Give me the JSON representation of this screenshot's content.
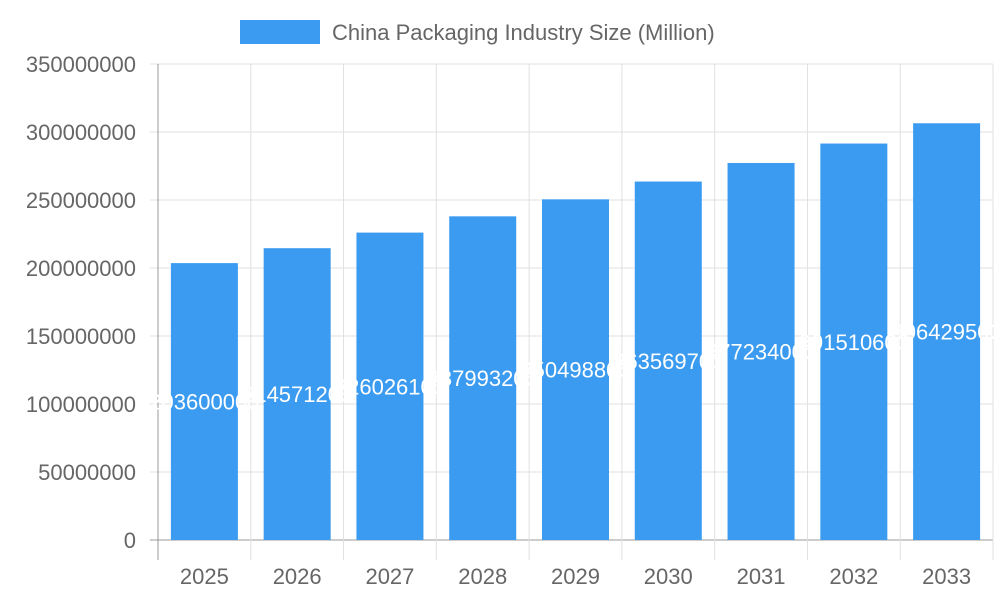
{
  "chart_data": {
    "type": "bar",
    "title": "",
    "xlabel": "",
    "ylabel": "",
    "categories": [
      "2025",
      "2026",
      "2027",
      "2028",
      "2029",
      "2030",
      "2031",
      "2032",
      "2033"
    ],
    "series": [
      {
        "name": "China Packaging Industry Size (Million)",
        "values": [
          203600000,
          214571200,
          226026100,
          237993200,
          250498800,
          263569700,
          277234000,
          291510600,
          306429500
        ],
        "color": "#3a9bf0"
      }
    ],
    "ylim": [
      0,
      350000000
    ],
    "yticks": [
      0,
      50000000,
      100000000,
      150000000,
      200000000,
      250000000,
      300000000,
      350000000
    ],
    "grid": true,
    "legend_placement": "top",
    "data_labels": true,
    "data_label_color": "#ffffff"
  }
}
